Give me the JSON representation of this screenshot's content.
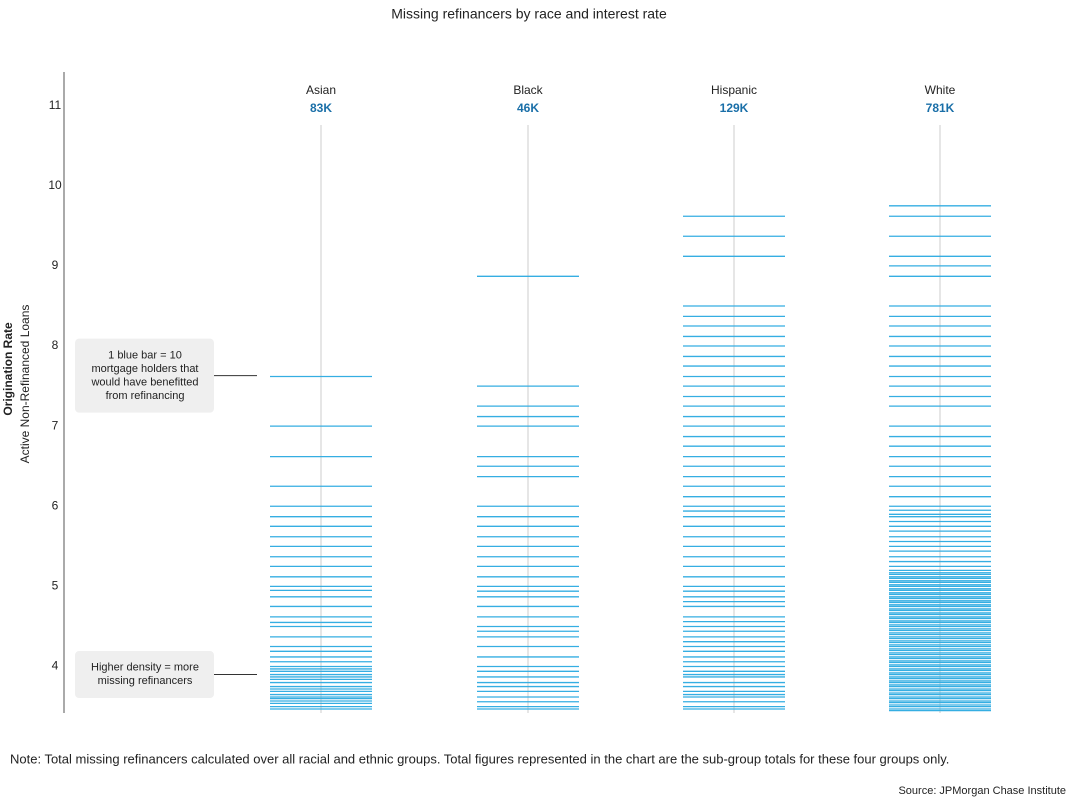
{
  "chart_data": {
    "type": "strip",
    "title": "Missing refinancers by race and interest rate",
    "y_label": "Origination Rate",
    "y_sublabel": "Active Non-Refinanced Loans",
    "ylim": [
      3.42,
      11.42
    ],
    "yticks": [
      4,
      5,
      6,
      7,
      8,
      9,
      10,
      11
    ],
    "color": "#35aee2",
    "series": [
      {
        "name": "Asian",
        "total": "83K",
        "values": [
          7.62,
          7.0,
          6.62,
          6.25,
          6.0,
          5.87,
          5.75,
          5.62,
          5.5,
          5.37,
          5.25,
          5.12,
          5.0,
          4.95,
          4.87,
          4.75,
          4.62,
          4.55,
          4.5,
          4.37,
          4.25,
          4.19,
          4.12,
          4.06,
          4.0,
          3.97,
          3.94,
          3.9,
          3.87,
          3.84,
          3.8,
          3.75,
          3.72,
          3.69,
          3.65,
          3.62,
          3.6,
          3.57,
          3.54,
          3.5,
          3.47
        ]
      },
      {
        "name": "Black",
        "total": "46K",
        "values": [
          8.87,
          7.5,
          7.25,
          7.12,
          7.0,
          6.62,
          6.5,
          6.37,
          6.0,
          5.87,
          5.75,
          5.62,
          5.5,
          5.37,
          5.25,
          5.12,
          5.0,
          4.94,
          4.87,
          4.75,
          4.62,
          4.5,
          4.44,
          4.37,
          4.25,
          4.12,
          4.0,
          3.94,
          3.87,
          3.8,
          3.75,
          3.69,
          3.62,
          3.56,
          3.5,
          3.47
        ]
      },
      {
        "name": "Hispanic",
        "total": "129K",
        "values": [
          9.62,
          9.37,
          9.12,
          8.5,
          8.37,
          8.25,
          8.12,
          8.0,
          7.87,
          7.75,
          7.62,
          7.5,
          7.37,
          7.25,
          7.12,
          7.0,
          6.87,
          6.75,
          6.62,
          6.5,
          6.37,
          6.25,
          6.12,
          6.0,
          5.94,
          5.87,
          5.75,
          5.62,
          5.5,
          5.37,
          5.25,
          5.12,
          5.0,
          4.94,
          4.87,
          4.81,
          4.75,
          4.62,
          4.56,
          4.5,
          4.44,
          4.37,
          4.31,
          4.25,
          4.19,
          4.12,
          4.06,
          4.0,
          3.94,
          3.9,
          3.87,
          3.8,
          3.75,
          3.69,
          3.65,
          3.62,
          3.56,
          3.5,
          3.47
        ]
      },
      {
        "name": "White",
        "total": "781K",
        "values": [
          9.75,
          9.62,
          9.37,
          9.12,
          9.0,
          8.87,
          8.5,
          8.37,
          8.25,
          8.12,
          8.0,
          7.87,
          7.75,
          7.62,
          7.5,
          7.37,
          7.25,
          7.0,
          6.87,
          6.75,
          6.62,
          6.5,
          6.37,
          6.25,
          6.12,
          6.0,
          5.95,
          5.9,
          5.87,
          5.81,
          5.75,
          5.69,
          5.62,
          5.56,
          5.5,
          5.44,
          5.37,
          5.31,
          5.25,
          5.2,
          5.17,
          5.15,
          5.12,
          5.1,
          5.07,
          5.05,
          5.02,
          5.0,
          4.97,
          4.95,
          4.92,
          4.9,
          4.87,
          4.85,
          4.82,
          4.8,
          4.77,
          4.75,
          4.72,
          4.7,
          4.67,
          4.65,
          4.62,
          4.6,
          4.57,
          4.55,
          4.52,
          4.5,
          4.47,
          4.45,
          4.42,
          4.4,
          4.37,
          4.35,
          4.32,
          4.3,
          4.27,
          4.25,
          4.22,
          4.2,
          4.17,
          4.15,
          4.12,
          4.1,
          4.07,
          4.05,
          4.02,
          4.0,
          3.97,
          3.95,
          3.92,
          3.9,
          3.87,
          3.85,
          3.82,
          3.8,
          3.77,
          3.75,
          3.72,
          3.7,
          3.67,
          3.65,
          3.62,
          3.6,
          3.57,
          3.55,
          3.52,
          3.5,
          3.47,
          3.45
        ]
      }
    ],
    "annotations": [
      {
        "lines": [
          "1 blue bar = 10",
          "mortgage holders that",
          "would have benefitted",
          "from refinancing"
        ],
        "y": 7.63
      },
      {
        "lines": [
          "Higher density = more",
          "missing refinancers"
        ],
        "y": 3.9
      }
    ],
    "note": "Note: Total missing refinancers calculated over all racial and ethnic groups. Total figures represented in the chart are the sub-group totals for these four groups only.",
    "source": "Source: JPMorgan Chase Institute"
  }
}
